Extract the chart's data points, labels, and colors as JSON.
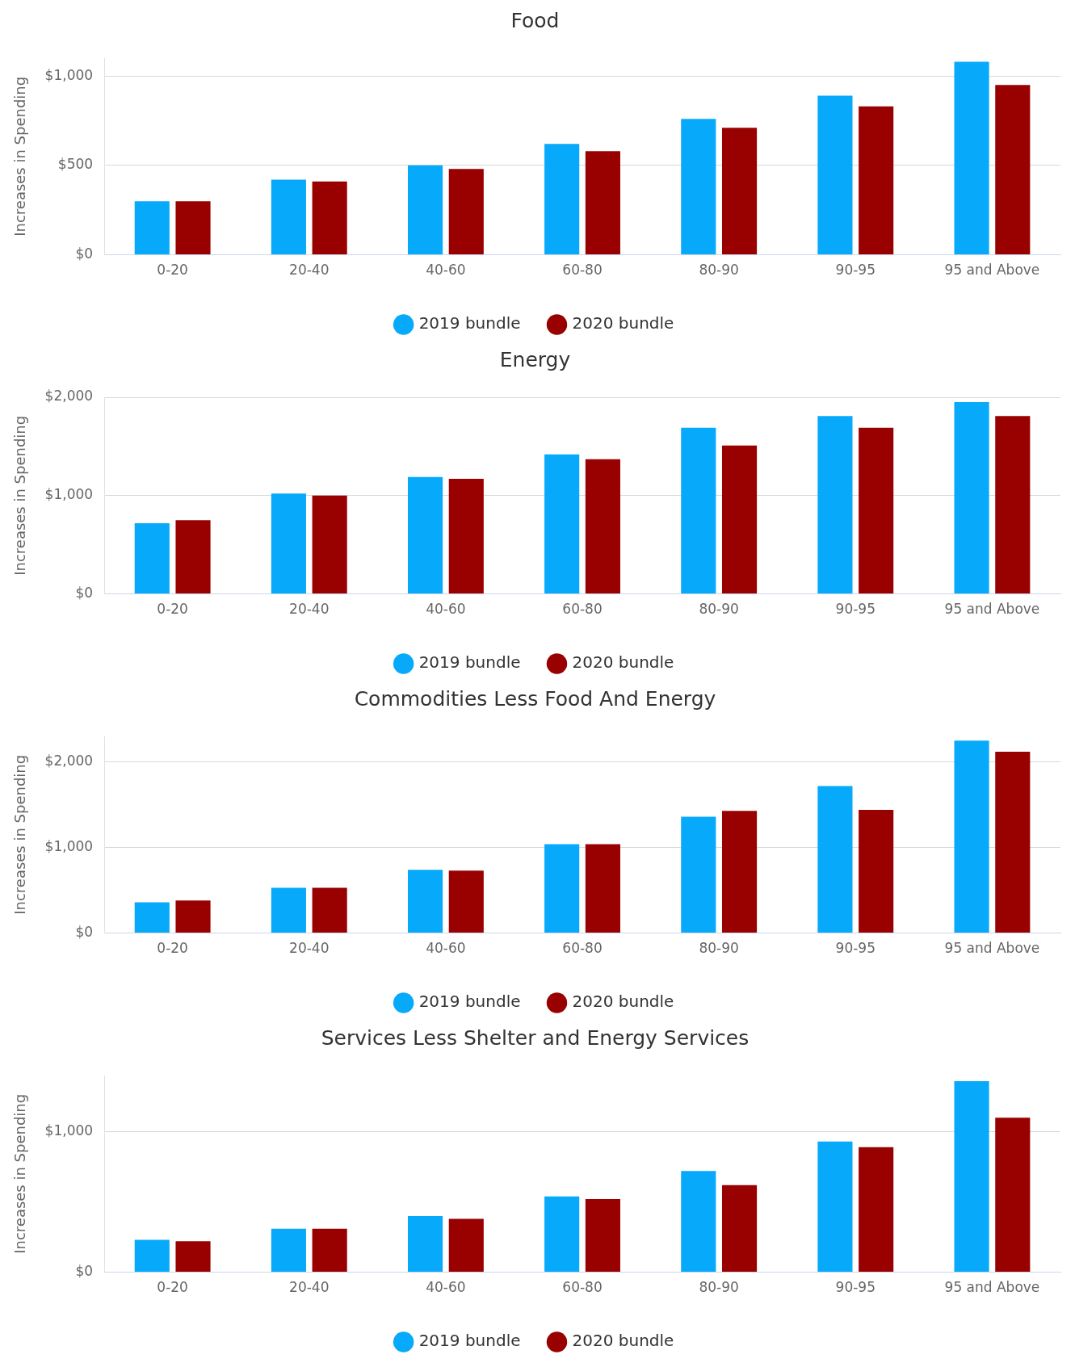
{
  "chart_data": [
    {
      "type": "bar",
      "title": "Food",
      "ylabel": "Increases in Spending",
      "categories": [
        "0-20",
        "20-40",
        "40-60",
        "60-80",
        "80-90",
        "90-95",
        "95 and Above"
      ],
      "series": [
        {
          "name": "2019 bundle",
          "color": "#07a9fb",
          "values": [
            300,
            420,
            500,
            620,
            760,
            890,
            1080
          ]
        },
        {
          "name": "2020 bundle",
          "color": "#990000",
          "values": [
            300,
            410,
            480,
            580,
            710,
            830,
            950
          ]
        }
      ],
      "ylim": [
        0,
        1100
      ],
      "yticks": [
        {
          "value": 0,
          "label": "$0"
        },
        {
          "value": 500,
          "label": "$500"
        },
        {
          "value": 1000,
          "label": "$1,000"
        }
      ],
      "grid": "y",
      "legend": "bottom"
    },
    {
      "type": "bar",
      "title": "Energy",
      "ylabel": "Increases in Spending",
      "categories": [
        "0-20",
        "20-40",
        "40-60",
        "60-80",
        "80-90",
        "90-95",
        "95 and Above"
      ],
      "series": [
        {
          "name": "2019 bundle",
          "color": "#07a9fb",
          "values": [
            720,
            1020,
            1190,
            1420,
            1690,
            1810,
            1950
          ]
        },
        {
          "name": "2020 bundle",
          "color": "#990000",
          "values": [
            750,
            1000,
            1170,
            1370,
            1510,
            1690,
            1810
          ]
        }
      ],
      "ylim": [
        0,
        2000
      ],
      "yticks": [
        {
          "value": 0,
          "label": "$0"
        },
        {
          "value": 1000,
          "label": "$1,000"
        },
        {
          "value": 2000,
          "label": "$2,000"
        }
      ],
      "grid": "y",
      "legend": "bottom"
    },
    {
      "type": "bar",
      "title": "Commodities Less Food And Energy",
      "ylabel": "Increases in Spending",
      "categories": [
        "0-20",
        "20-40",
        "40-60",
        "60-80",
        "80-90",
        "90-95",
        "95 and Above"
      ],
      "series": [
        {
          "name": "2019 bundle",
          "color": "#07a9fb",
          "values": [
            360,
            530,
            740,
            1040,
            1360,
            1720,
            2250
          ]
        },
        {
          "name": "2020 bundle",
          "color": "#990000",
          "values": [
            380,
            530,
            730,
            1040,
            1430,
            1440,
            2120
          ]
        }
      ],
      "ylim": [
        0,
        2300
      ],
      "yticks": [
        {
          "value": 0,
          "label": "$0"
        },
        {
          "value": 1000,
          "label": "$1,000"
        },
        {
          "value": 2000,
          "label": "$2,000"
        }
      ],
      "grid": "y",
      "legend": "bottom"
    },
    {
      "type": "bar",
      "title": "Services Less Shelter and Energy Services",
      "ylabel": "Increases in Spending",
      "categories": [
        "0-20",
        "20-40",
        "40-60",
        "60-80",
        "80-90",
        "90-95",
        "95 and Above"
      ],
      "series": [
        {
          "name": "2019 bundle",
          "color": "#07a9fb",
          "values": [
            230,
            310,
            400,
            540,
            720,
            930,
            1360
          ]
        },
        {
          "name": "2020 bundle",
          "color": "#990000",
          "values": [
            220,
            310,
            380,
            520,
            620,
            890,
            1100
          ]
        }
      ],
      "ylim": [
        0,
        1400
      ],
      "yticks": [
        {
          "value": 0,
          "label": "$0"
        },
        {
          "value": 1000,
          "label": "$1,000"
        }
      ],
      "grid": "y",
      "legend": "bottom"
    }
  ]
}
